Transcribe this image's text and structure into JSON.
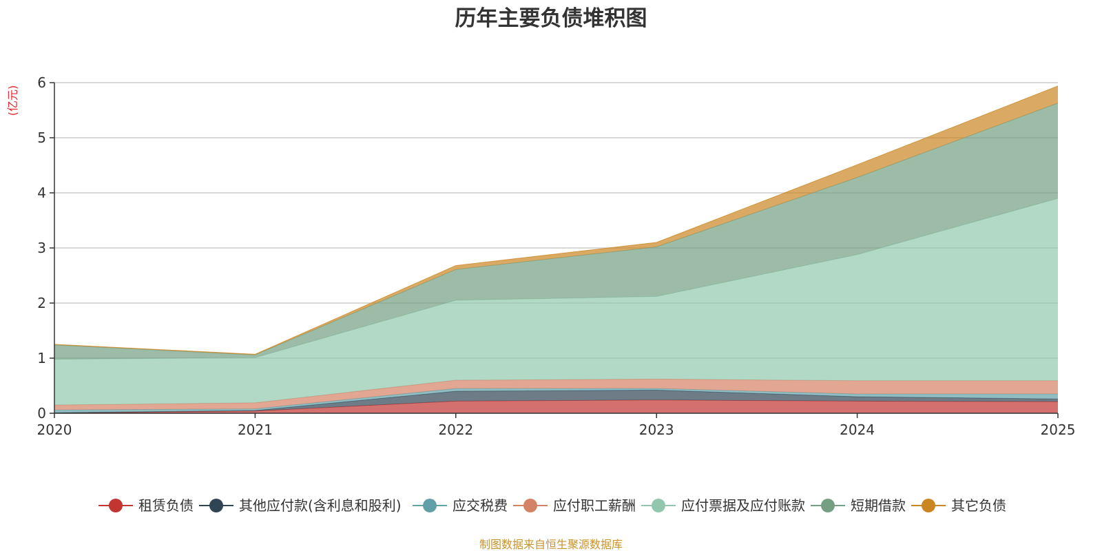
{
  "chart_data": {
    "type": "area",
    "stacked": true,
    "title": "历年主要负债堆积图",
    "ylabel": "(亿元)",
    "xlabel": "",
    "ylim": [
      0,
      6
    ],
    "yticks": [
      0,
      1,
      2,
      3,
      4,
      5,
      6
    ],
    "grid": true,
    "legend_position": "bottom",
    "categories": [
      "2020",
      "2021",
      "2022",
      "2023",
      "2024",
      "2025"
    ],
    "series": [
      {
        "name": "租赁负债",
        "color": "#c23531",
        "values": [
          0.005,
          0.04,
          0.22,
          0.24,
          0.22,
          0.21
        ]
      },
      {
        "name": "其他应付款(含利息和股利)",
        "color": "#2f4554",
        "values": [
          0.005,
          0.01,
          0.18,
          0.18,
          0.08,
          0.05
        ]
      },
      {
        "name": "应交税费",
        "color": "#61a0a8",
        "values": [
          0.05,
          0.03,
          0.05,
          0.03,
          0.05,
          0.09
        ]
      },
      {
        "name": "应付职工薪酬",
        "color": "#d48265",
        "values": [
          0.09,
          0.11,
          0.15,
          0.17,
          0.24,
          0.24
        ]
      },
      {
        "name": "应付票据及应付账款",
        "color": "#91c7ae",
        "values": [
          0.83,
          0.82,
          1.45,
          1.5,
          2.29,
          3.31
        ]
      },
      {
        "name": "短期借款",
        "color": "#749f83",
        "values": [
          0.26,
          0.05,
          0.56,
          0.9,
          1.4,
          1.73
        ]
      },
      {
        "name": "其它负债",
        "color": "#ca8622",
        "values": [
          0.01,
          0.01,
          0.07,
          0.08,
          0.23,
          0.31
        ]
      }
    ],
    "source_note": "制图数据来自恒生聚源数据库"
  },
  "colors": {
    "unit_label": "#e8222a",
    "source_note": "#c8932a"
  }
}
